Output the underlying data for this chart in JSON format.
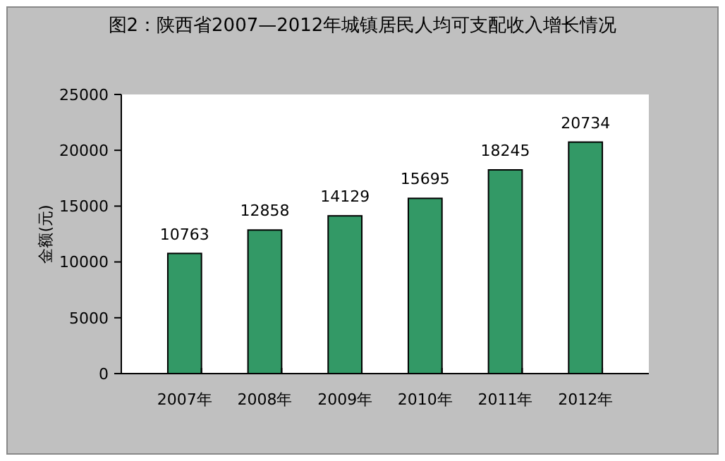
{
  "chart_data": {
    "type": "bar",
    "title": "图2：陕西省2007—2012年城镇居民人均可支配收入增长情况",
    "ylabel": "金额(元)",
    "categories": [
      "2007年",
      "2008年",
      "2009年",
      "2010年",
      "2011年",
      "2012年"
    ],
    "values": [
      10763,
      12858,
      14129,
      15695,
      18245,
      20734
    ],
    "color": "#339966",
    "ylim": [
      0,
      25000
    ],
    "yticks": [
      0,
      5000,
      10000,
      15000,
      20000,
      25000
    ],
    "grid": false,
    "data_labels": true
  }
}
